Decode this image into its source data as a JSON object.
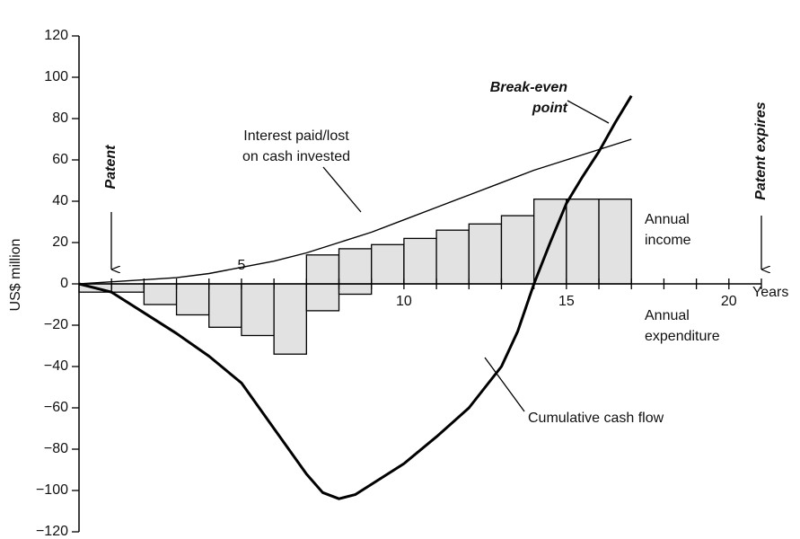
{
  "chart_data": {
    "type": "combo",
    "y_label": "US$ million",
    "x_label": "Years",
    "xlim": [
      0,
      21
    ],
    "ylim": [
      -120,
      120
    ],
    "xticks": [
      5,
      10,
      15,
      20
    ],
    "x_minor_ticks": [
      1,
      2,
      3,
      4,
      5,
      6,
      7,
      8,
      9,
      10,
      11,
      12,
      13,
      14,
      15,
      16,
      17,
      18,
      19,
      20,
      21
    ],
    "yticks": [
      {
        "value": -120,
        "label": "−120"
      },
      {
        "value": -100,
        "label": "−100"
      },
      {
        "value": -80,
        "label": "−80"
      },
      {
        "value": -60,
        "label": "−60"
      },
      {
        "value": -40,
        "label": "−40"
      },
      {
        "value": -20,
        "label": "−20"
      },
      0,
      20,
      40,
      60,
      80,
      100,
      120
    ],
    "series": [
      {
        "name": "Annual expenditure",
        "type": "bar",
        "color": "#e2e2e2",
        "x": [
          0,
          1,
          2,
          3,
          4,
          5,
          6,
          7,
          8
        ],
        "values": [
          -4,
          -4,
          -10,
          -15,
          -21,
          -25,
          -34,
          -13,
          -5
        ]
      },
      {
        "name": "Annual income",
        "type": "bar",
        "color": "#e2e2e2",
        "x": [
          7,
          8,
          9,
          10,
          11,
          12,
          13,
          14,
          15,
          16
        ],
        "values": [
          14,
          17,
          19,
          22,
          26,
          29,
          33,
          41,
          41,
          41
        ]
      },
      {
        "name": "Interest paid/lost on cash invested",
        "type": "line",
        "color": "#000000",
        "width": 1.4,
        "x": [
          0,
          1,
          2,
          3,
          4,
          5,
          6,
          7,
          8,
          9,
          10,
          11,
          12,
          13,
          14,
          15,
          16,
          17
        ],
        "values": [
          0,
          1,
          2,
          3,
          5,
          8,
          11,
          15,
          20,
          25,
          31,
          37,
          43,
          49,
          55,
          60,
          65,
          70
        ]
      },
      {
        "name": "Cumulative cash flow",
        "type": "line",
        "color": "#000000",
        "width": 3,
        "x": [
          0,
          1,
          2,
          3,
          4,
          5,
          6,
          7,
          7.5,
          8,
          8.5,
          9,
          10,
          11,
          12,
          13,
          13.5,
          14,
          14.5,
          15,
          15.5,
          16,
          16.5,
          17
        ],
        "values": [
          0,
          -4,
          -14,
          -24,
          -35,
          -48,
          -70,
          -92,
          -101,
          -104,
          -102,
          -97,
          -87,
          -74,
          -60,
          -40,
          -23,
          0,
          20,
          39,
          52,
          64,
          78,
          91
        ]
      }
    ],
    "annotations": [
      {
        "text": [
          "Patent"
        ]
      },
      {
        "text": [
          "Patent expires"
        ]
      },
      {
        "text": [
          "Break-even",
          "point"
        ]
      },
      {
        "text": [
          "Interest paid/lost",
          "on cash invested"
        ]
      },
      {
        "text": [
          "Annual",
          "income"
        ]
      },
      {
        "text": [
          "Annual",
          "expenditure"
        ]
      },
      {
        "text": [
          "Cumulative cash flow"
        ]
      }
    ]
  }
}
